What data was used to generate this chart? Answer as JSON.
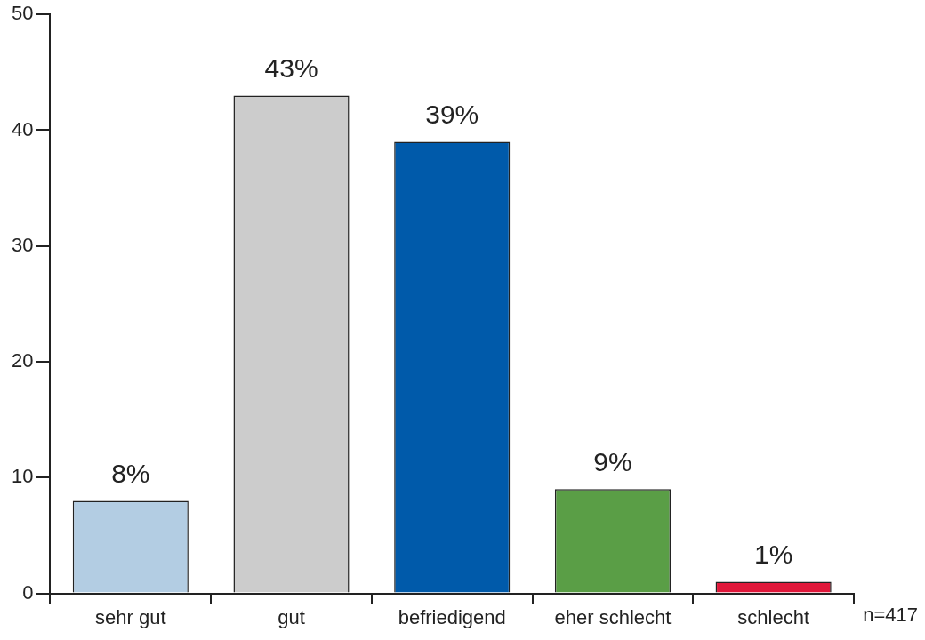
{
  "chart_data": {
    "type": "bar",
    "categories": [
      "sehr gut",
      "gut",
      "befriedigend",
      "eher schlecht",
      "schlecht"
    ],
    "values": [
      8,
      43,
      39,
      9,
      1
    ],
    "colors": [
      "#b3cde3",
      "#cccccc",
      "#005aaa",
      "#5a9e46",
      "#e0173a"
    ],
    "value_labels": [
      "8%",
      "43%",
      "39%",
      "9%",
      "1%"
    ],
    "ylim": [
      0,
      50
    ],
    "yticks": [
      0,
      10,
      20,
      30,
      40,
      50
    ],
    "grid": false,
    "legend": false,
    "annotations": [
      "n=417"
    ]
  }
}
